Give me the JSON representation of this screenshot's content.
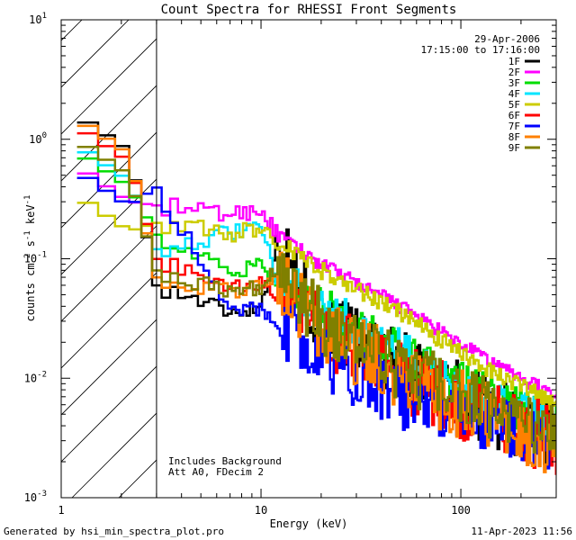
{
  "chart_data": {
    "type": "line",
    "title": "Count Spectra for RHESSI Front Segments",
    "xlabel": "Energy (keV)",
    "ylabel": "counts cm",
    "ylabel_exp1": "-2",
    "ylabel_mid": " s",
    "ylabel_exp2": "-1",
    "ylabel_end": " keV",
    "ylabel_exp3": "-1",
    "xscale": "log",
    "yscale": "log",
    "xlim": [
      1,
      300
    ],
    "ylim": [
      0.001,
      10
    ],
    "x_tick_labels": [
      "1",
      "10",
      "100"
    ],
    "y_tick_labels": [
      {
        "base": "10",
        "exp": "-3"
      },
      {
        "base": "10",
        "exp": "-2"
      },
      {
        "base": "10",
        "exp": "-1"
      },
      {
        "base": "10",
        "exp": "0"
      },
      {
        "base": "10",
        "exp": "1"
      }
    ],
    "date": "29-Apr-2006",
    "time_range": "17:15:00 to 17:16:00",
    "shaded_region_max_keV": 3,
    "annotations": [
      "Includes Background",
      "Att A0, FDecim 2"
    ],
    "series": [
      {
        "name": "1F",
        "color": "#000000",
        "y3": 0.06,
        "y10": 0.04,
        "y12": 0.14,
        "y20": 0.03,
        "y50": 0.013,
        "y100": 0.007,
        "y300": 0.003,
        "noise": 0.5,
        "low": 1.6
      },
      {
        "name": "2F",
        "color": "#ff00ff",
        "y3": 0.28,
        "y10": 0.26,
        "y12": 0.16,
        "y20": 0.09,
        "y50": 0.04,
        "y100": 0.019,
        "y300": 0.007,
        "noise": 0.1,
        "low": 0.6
      },
      {
        "name": "3F",
        "color": "#00dd00",
        "y3": 0.16,
        "y10": 0.085,
        "y12": 0.07,
        "y20": 0.04,
        "y50": 0.016,
        "y100": 0.009,
        "y300": 0.004,
        "noise": 0.3,
        "low": 0.8
      },
      {
        "name": "4F",
        "color": "#00e5ff",
        "y3": 0.12,
        "y10": 0.18,
        "y12": 0.07,
        "y20": 0.04,
        "y50": 0.017,
        "y100": 0.008,
        "y300": 0.004,
        "noise": 0.3,
        "low": 0.9
      },
      {
        "name": "5F",
        "color": "#cccc00",
        "y3": 0.2,
        "y10": 0.18,
        "y12": 0.14,
        "y20": 0.08,
        "y50": 0.035,
        "y100": 0.016,
        "y300": 0.006,
        "noise": 0.12,
        "low": 0.34
      },
      {
        "name": "6F",
        "color": "#ff0000",
        "y3": 0.1,
        "y10": 0.06,
        "y12": 0.05,
        "y20": 0.025,
        "y50": 0.01,
        "y100": 0.006,
        "y300": 0.003,
        "noise": 0.5,
        "low": 1.3
      },
      {
        "name": "7F",
        "color": "#0000ff",
        "y3": 0.4,
        "y10": 0.04,
        "y12": 0.03,
        "y20": 0.015,
        "y50": 0.007,
        "y100": 0.005,
        "y300": 0.003,
        "noise": 0.45,
        "low": 0.55
      },
      {
        "name": "8F",
        "color": "#ff8000",
        "y3": 0.07,
        "y10": 0.06,
        "y12": 0.08,
        "y20": 0.025,
        "y50": 0.011,
        "y100": 0.006,
        "y300": 0.003,
        "noise": 0.5,
        "low": 1.5
      },
      {
        "name": "9F",
        "color": "#808000",
        "y3": 0.08,
        "y10": 0.06,
        "y12": 0.08,
        "y20": 0.03,
        "y50": 0.012,
        "y100": 0.007,
        "y300": 0.0035,
        "noise": 0.45,
        "low": 1.0
      }
    ]
  },
  "footer": {
    "generated_by": "Generated by hsi_min_spectra_plot.pro",
    "timestamp": "11-Apr-2023 11:56"
  }
}
